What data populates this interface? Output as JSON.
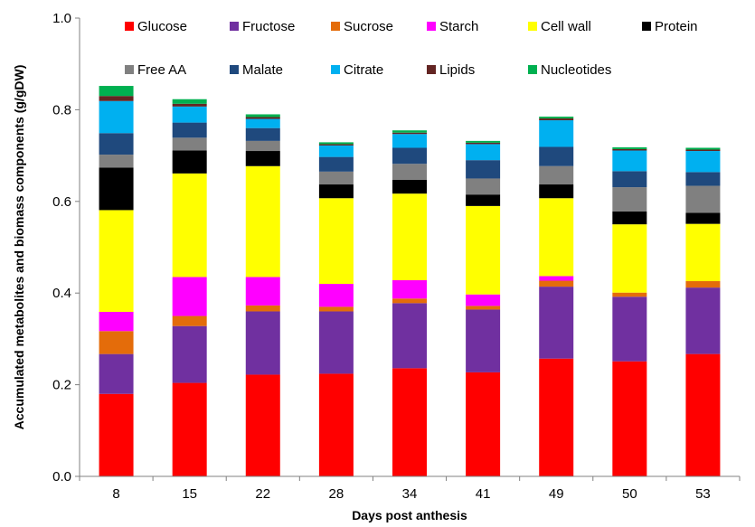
{
  "chart_data": {
    "type": "bar",
    "stacked": true,
    "title": "",
    "xlabel": "Days post anthesis",
    "ylabel": "Accumulated metabolites and biomass components (g/gDW)",
    "ylim": [
      0,
      1.0
    ],
    "yticks": [
      "0.0",
      "0.2",
      "0.4",
      "0.6",
      "0.8",
      "1.0"
    ],
    "grid": false,
    "legend_position": "top",
    "categories": [
      "8",
      "15",
      "22",
      "28",
      "34",
      "41",
      "49",
      "50",
      "53"
    ],
    "series": [
      {
        "name": "Glucose",
        "color": "#ff0000",
        "values": [
          0.18,
          0.204,
          0.222,
          0.224,
          0.236,
          0.227,
          0.257,
          0.251,
          0.267
        ]
      },
      {
        "name": "Fructose",
        "color": "#7030a0",
        "values": [
          0.087,
          0.124,
          0.138,
          0.136,
          0.142,
          0.137,
          0.157,
          0.141,
          0.145
        ]
      },
      {
        "name": "Sucrose",
        "color": "#e46c0a",
        "values": [
          0.05,
          0.022,
          0.013,
          0.01,
          0.01,
          0.008,
          0.013,
          0.009,
          0.014
        ]
      },
      {
        "name": "Starch",
        "color": "#ff00ff",
        "values": [
          0.042,
          0.085,
          0.062,
          0.05,
          0.04,
          0.025,
          0.01,
          0.0,
          0.0
        ]
      },
      {
        "name": "Cell wall",
        "color": "#ffff00",
        "values": [
          0.222,
          0.226,
          0.242,
          0.187,
          0.189,
          0.193,
          0.17,
          0.149,
          0.125
        ]
      },
      {
        "name": "Protein",
        "color": "#000000",
        "values": [
          0.093,
          0.05,
          0.033,
          0.03,
          0.03,
          0.025,
          0.03,
          0.028,
          0.024
        ]
      },
      {
        "name": "Free AA",
        "color": "#808080",
        "values": [
          0.028,
          0.028,
          0.022,
          0.028,
          0.035,
          0.035,
          0.04,
          0.053,
          0.059
        ]
      },
      {
        "name": "Malate",
        "color": "#1f497d",
        "values": [
          0.047,
          0.033,
          0.028,
          0.032,
          0.035,
          0.04,
          0.042,
          0.035,
          0.03
        ]
      },
      {
        "name": "Citrate",
        "color": "#00b0f0",
        "values": [
          0.07,
          0.035,
          0.02,
          0.025,
          0.03,
          0.035,
          0.058,
          0.045,
          0.046
        ]
      },
      {
        "name": "Lipids",
        "color": "#632523",
        "values": [
          0.011,
          0.006,
          0.004,
          0.003,
          0.003,
          0.003,
          0.004,
          0.003,
          0.003
        ]
      },
      {
        "name": "Nucleotides",
        "color": "#00b050",
        "values": [
          0.022,
          0.01,
          0.006,
          0.004,
          0.005,
          0.004,
          0.004,
          0.004,
          0.004
        ]
      }
    ]
  }
}
